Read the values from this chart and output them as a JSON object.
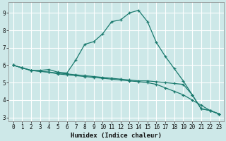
{
  "xlabel": "Humidex (Indice chaleur)",
  "xlim": [
    -0.5,
    23.5
  ],
  "ylim": [
    2.8,
    9.6
  ],
  "yticks": [
    3,
    4,
    5,
    6,
    7,
    8,
    9
  ],
  "xticks": [
    0,
    1,
    2,
    3,
    4,
    5,
    6,
    7,
    8,
    9,
    10,
    11,
    12,
    13,
    14,
    15,
    16,
    17,
    18,
    19,
    20,
    21,
    22,
    23
  ],
  "background_color": "#cde8e8",
  "grid_color": "#ffffff",
  "line_color": "#1a7a6e",
  "line1_x": [
    0,
    1,
    2,
    3,
    4,
    5,
    6,
    7,
    8,
    9,
    10,
    11,
    12,
    13,
    14,
    15,
    16,
    17,
    18,
    19,
    20,
    21,
    22,
    23
  ],
  "line1_y": [
    6.0,
    5.85,
    5.7,
    5.7,
    5.75,
    5.6,
    5.55,
    6.3,
    7.2,
    7.35,
    7.8,
    8.5,
    8.6,
    9.0,
    9.15,
    8.5,
    7.3,
    6.5,
    5.8,
    5.1,
    4.3,
    3.5,
    3.4,
    3.2
  ],
  "line2_x": [
    0,
    1,
    2,
    3,
    4,
    5,
    6,
    7,
    8,
    9,
    10,
    11,
    12,
    13,
    14,
    15,
    16,
    17,
    18,
    19,
    20,
    21,
    22,
    23
  ],
  "line2_y": [
    6.0,
    5.85,
    5.7,
    5.65,
    5.6,
    5.55,
    5.5,
    5.45,
    5.4,
    5.35,
    5.3,
    5.25,
    5.2,
    5.15,
    5.1,
    5.1,
    5.05,
    5.0,
    4.95,
    4.9,
    4.3,
    3.5,
    3.4,
    3.2
  ],
  "line3_x": [
    0,
    1,
    2,
    3,
    4,
    5,
    6,
    7,
    8,
    9,
    10,
    11,
    12,
    13,
    14,
    15,
    16,
    17,
    18,
    19,
    20,
    21,
    22,
    23
  ],
  "line3_y": [
    6.0,
    5.85,
    5.7,
    5.65,
    5.6,
    5.5,
    5.45,
    5.4,
    5.35,
    5.3,
    5.25,
    5.2,
    5.15,
    5.1,
    5.05,
    5.0,
    4.9,
    4.7,
    4.5,
    4.3,
    4.0,
    3.7,
    3.4,
    3.2
  ],
  "tick_fontsize": 5.5,
  "xlabel_fontsize": 6.5
}
